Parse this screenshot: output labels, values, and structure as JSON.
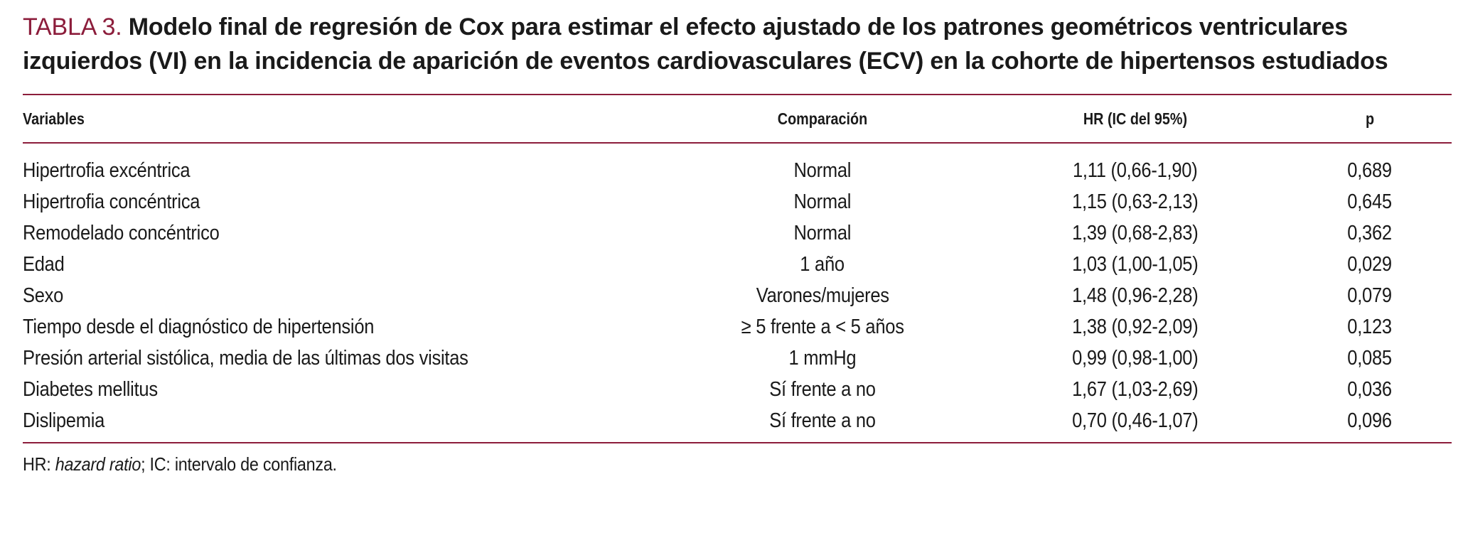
{
  "caption": {
    "label": "TABLA 3.",
    "text": "Modelo final de regresión de Cox para estimar el efecto ajustado de los patrones geométricos ventriculares izquierdos (VI) en la incidencia de aparición de eventos cardiovasculares (ECV) en la cohorte de hipertensos estudiados"
  },
  "table": {
    "headers": {
      "variables": "Variables",
      "comparacion": "Comparación",
      "hr": "HR (IC del 95%)",
      "p": "p"
    },
    "rows": [
      {
        "variable": "Hipertrofia excéntrica",
        "comparacion": "Normal",
        "hr": "1,11 (0,66-1,90)",
        "p": "0,689"
      },
      {
        "variable": "Hipertrofia concéntrica",
        "comparacion": "Normal",
        "hr": "1,15 (0,63-2,13)",
        "p": "0,645"
      },
      {
        "variable": "Remodelado concéntrico",
        "comparacion": "Normal",
        "hr": "1,39 (0,68-2,83)",
        "p": "0,362"
      },
      {
        "variable": "Edad",
        "comparacion": "1 año",
        "hr": "1,03 (1,00-1,05)",
        "p": "0,029"
      },
      {
        "variable": "Sexo",
        "comparacion": "Varones/mujeres",
        "hr": "1,48 (0,96-2,28)",
        "p": "0,079"
      },
      {
        "variable": "Tiempo desde el diagnóstico de hipertensión",
        "comparacion": "≥ 5 frente a < 5 años",
        "hr": "1,38 (0,92-2,09)",
        "p": "0,123"
      },
      {
        "variable": "Presión arterial sistólica, media de las últimas dos visitas",
        "comparacion": "1 mmHg",
        "hr": "0,99 (0,98-1,00)",
        "p": "0,085"
      },
      {
        "variable": "Diabetes mellitus",
        "comparacion": "Sí frente a no",
        "hr": "1,67 (1,03-2,69)",
        "p": "0,036"
      },
      {
        "variable": "Dislipemia",
        "comparacion": "Sí frente a no",
        "hr": "0,70 (0,46-1,07)",
        "p": "0,096"
      }
    ]
  },
  "footnote": {
    "prefix": "HR: ",
    "italic": "hazard ratio",
    "suffix": "; IC: intervalo de confianza."
  },
  "colors": {
    "accent": "#8c1d3b",
    "text": "#1a1a1a"
  }
}
